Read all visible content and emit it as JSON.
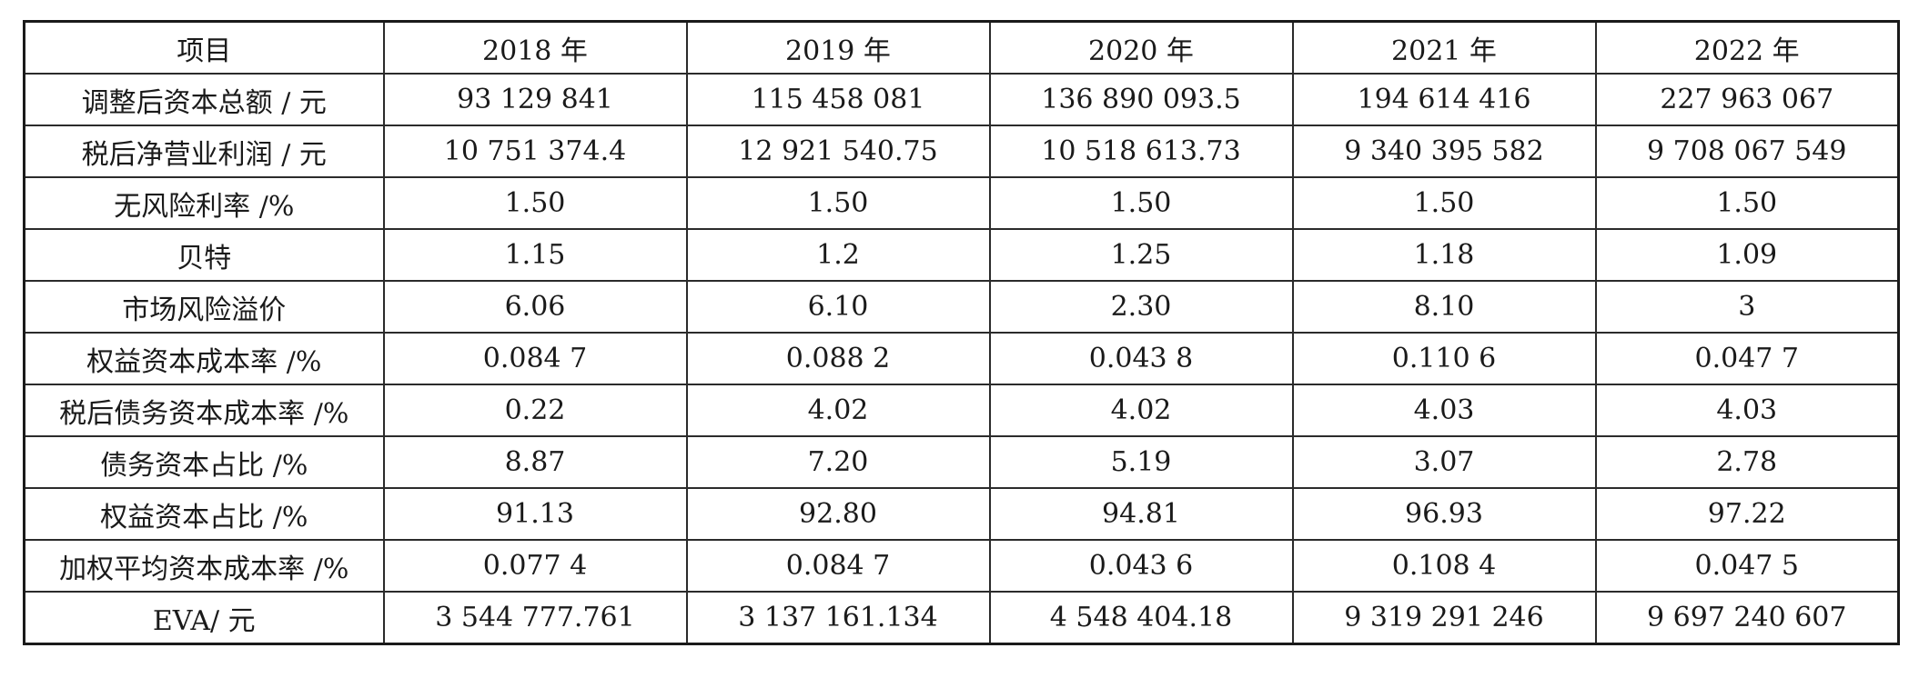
{
  "table": {
    "headers": [
      "项目",
      "2018 年",
      "2019 年",
      "2020 年",
      "2021 年",
      "2022 年"
    ],
    "rows": [
      [
        "调整后资本总额 / 元",
        "93 129 841",
        "115 458 081",
        "136 890 093.5",
        "194 614 416",
        "227 963 067"
      ],
      [
        "税后净营业利润 / 元",
        "10 751 374.4",
        "12 921 540.75",
        "10 518 613.73",
        "9 340 395 582",
        "9 708 067 549"
      ],
      [
        "无风险利率 /%",
        "1.50",
        "1.50",
        "1.50",
        "1.50",
        "1.50"
      ],
      [
        "贝特",
        "1.15",
        "1.2",
        "1.25",
        "1.18",
        "1.09"
      ],
      [
        "市场风险溢价",
        "6.06",
        "6.10",
        "2.30",
        "8.10",
        "3"
      ],
      [
        "权益资本成本率 /%",
        "0.084 7",
        "0.088 2",
        "0.043 8",
        "0.110 6",
        "0.047 7"
      ],
      [
        "税后债务资本成本率 /%",
        "0.22",
        "4.02",
        "4.02",
        "4.03",
        "4.03"
      ],
      [
        "债务资本占比 /%",
        "8.87",
        "7.20",
        "5.19",
        "3.07",
        "2.78"
      ],
      [
        "权益资本占比 /%",
        "91.13",
        "92.80",
        "94.81",
        "96.93",
        "97.22"
      ],
      [
        "加权平均资本成本率 /%",
        "0.077 4",
        "0.084 7",
        "0.043 6",
        "0.108 4",
        "0.047 5"
      ],
      [
        "EVA/ 元",
        "3 544 777.761",
        "3 137 161.134",
        "4 548 404.18",
        "9 319 291 246",
        "9 697 240 607"
      ]
    ]
  }
}
